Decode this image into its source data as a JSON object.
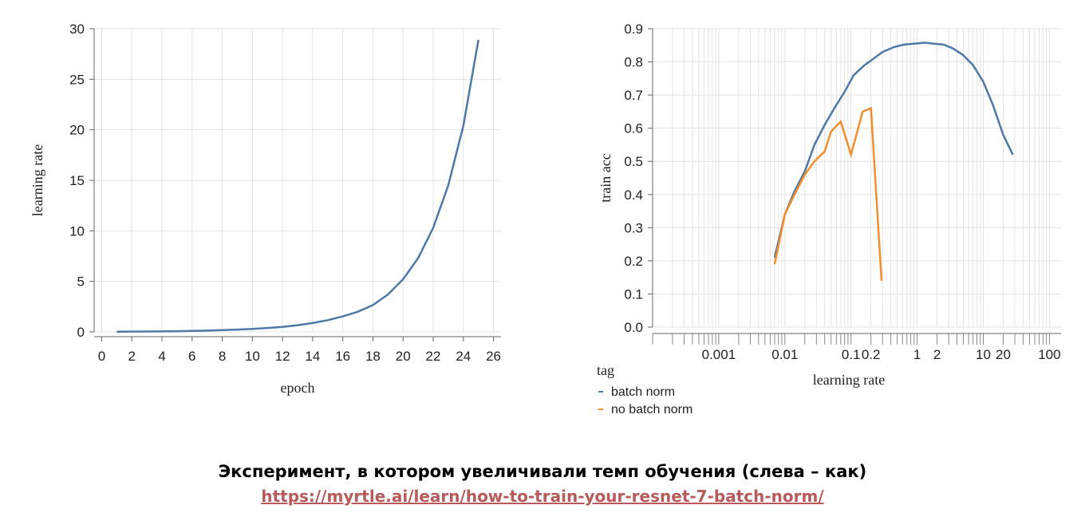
{
  "chart_data": [
    {
      "type": "line",
      "xlabel": "epoch",
      "ylabel": "learning rate",
      "xlim": [
        -0.5,
        26.5
      ],
      "ylim": [
        0,
        30
      ],
      "x_ticks": [
        0,
        2,
        4,
        6,
        8,
        10,
        12,
        14,
        16,
        18,
        20,
        22,
        24,
        26
      ],
      "y_ticks": [
        0,
        5,
        10,
        15,
        20,
        25,
        30
      ],
      "grid": true,
      "series": [
        {
          "color": "#4e79a7",
          "x": [
            1,
            2,
            3,
            4,
            5,
            6,
            7,
            8,
            9,
            10,
            11,
            12,
            13,
            14,
            15,
            16,
            17,
            18,
            19,
            20,
            21,
            22,
            23,
            24,
            25
          ],
          "y": [
            0.02,
            0.03,
            0.04,
            0.05,
            0.07,
            0.1,
            0.13,
            0.17,
            0.23,
            0.3,
            0.39,
            0.5,
            0.66,
            0.88,
            1.16,
            1.53,
            2.0,
            2.65,
            3.7,
            5.2,
            7.3,
            10.3,
            14.5,
            20.4,
            28.9
          ]
        }
      ]
    },
    {
      "type": "line",
      "xlabel": "learning rate",
      "ylabel": "train acc",
      "xscale": "log",
      "xlim": [
        0.0001,
        150
      ],
      "ylim": [
        0,
        0.9
      ],
      "x_ticks": [
        0.001,
        0.01,
        0.1,
        0.2,
        1,
        2,
        10,
        20,
        100
      ],
      "x_tick_labels": [
        "0.001",
        "0.01",
        "0.1",
        "0.2",
        "1",
        "2",
        "10",
        "20",
        "100"
      ],
      "y_ticks": [
        0,
        0.1,
        0.2,
        0.3,
        0.4,
        0.5,
        0.6,
        0.7,
        0.8,
        0.9
      ],
      "y_tick_labels": [
        "0.0",
        "0.1",
        "0.2",
        "0.3",
        "0.4",
        "0.5",
        "0.6",
        "0.7",
        "0.8",
        "0.9"
      ],
      "grid": true,
      "legend_title": "tag",
      "legend_position": "bottom-left",
      "series": [
        {
          "name": "batch norm",
          "color": "#4e79a7",
          "x": [
            0.007,
            0.01,
            0.014,
            0.02,
            0.028,
            0.04,
            0.056,
            0.08,
            0.11,
            0.16,
            0.22,
            0.3,
            0.45,
            0.63,
            0.9,
            1.3,
            1.8,
            2.5,
            3.5,
            5,
            7,
            10,
            14,
            20,
            28
          ],
          "y": [
            0.21,
            0.34,
            0.41,
            0.47,
            0.55,
            0.61,
            0.66,
            0.71,
            0.76,
            0.79,
            0.81,
            0.83,
            0.845,
            0.852,
            0.855,
            0.858,
            0.855,
            0.852,
            0.84,
            0.82,
            0.79,
            0.74,
            0.67,
            0.58,
            0.52
          ]
        },
        {
          "name": "no batch norm",
          "color": "#f28e2b",
          "x": [
            0.007,
            0.01,
            0.014,
            0.02,
            0.028,
            0.04,
            0.05,
            0.07,
            0.1,
            0.15,
            0.2,
            0.29
          ],
          "y": [
            0.19,
            0.34,
            0.4,
            0.46,
            0.5,
            0.53,
            0.59,
            0.62,
            0.52,
            0.65,
            0.66,
            0.14
          ]
        }
      ]
    }
  ],
  "caption": {
    "text": "Эксперимент, в котором увеличивали темп обучения (слева – как)",
    "link": "https://myrtle.ai/learn/how-to-train-your-resnet-7-batch-norm/"
  }
}
